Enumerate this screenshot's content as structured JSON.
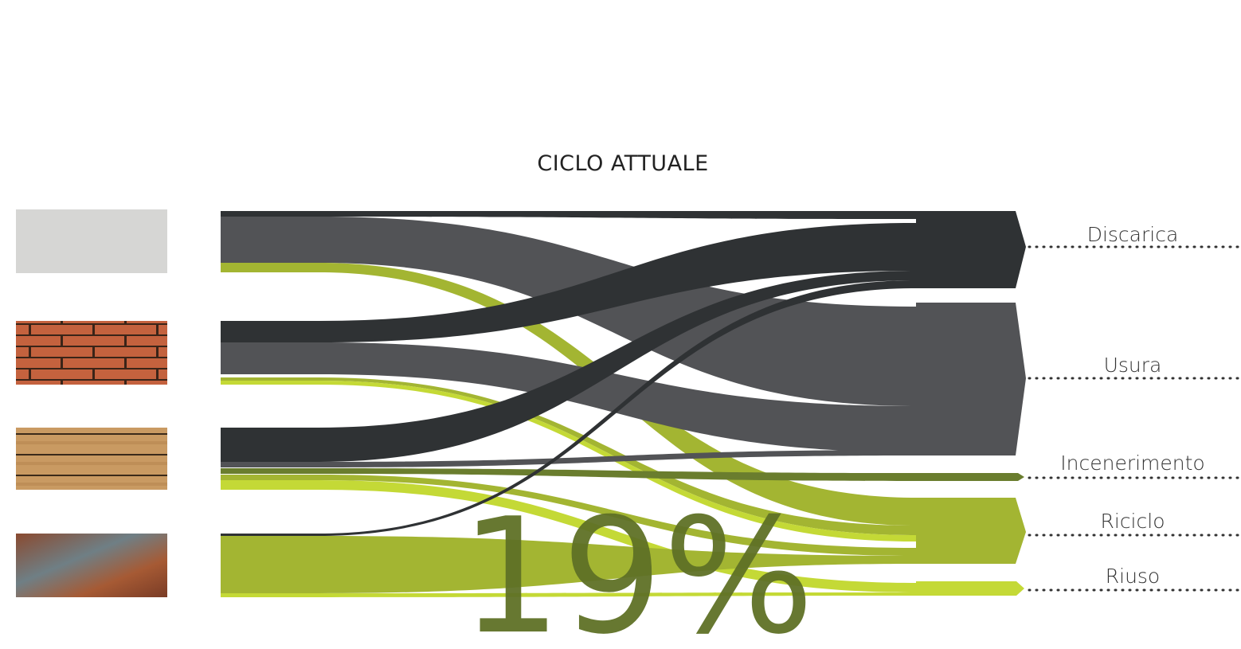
{
  "title": "CICLO ATTUALE",
  "destinations": [
    {
      "label": "Discarica"
    },
    {
      "label": "Usura"
    },
    {
      "label": "Incenerimento"
    },
    {
      "label": "Riciclo"
    },
    {
      "label": "Riuso"
    }
  ],
  "highlight": "19%"
}
